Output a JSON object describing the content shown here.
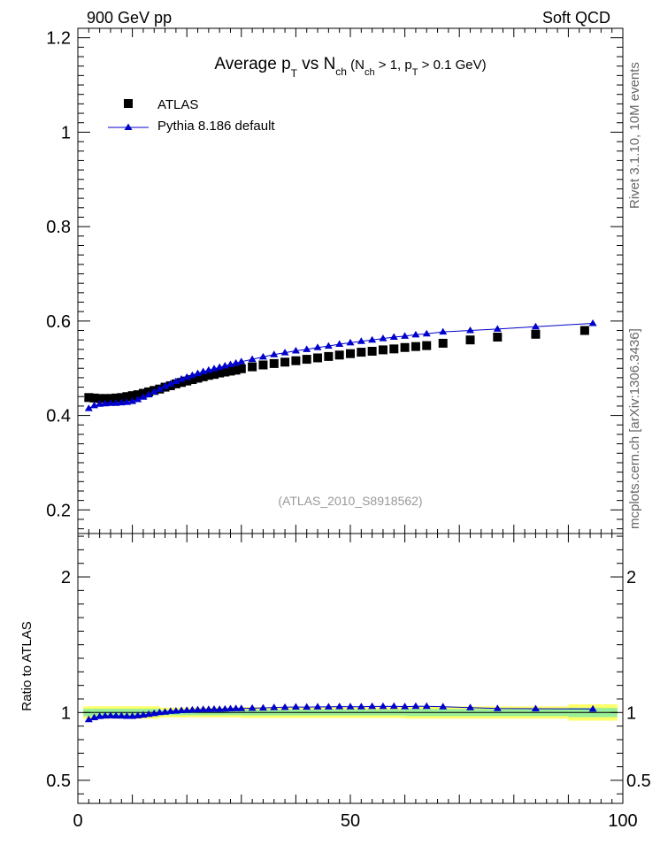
{
  "header": {
    "left": "900 GeV pp",
    "right": "Soft QCD"
  },
  "title": {
    "main": "Average p",
    "sub_T": "T",
    "vs": " vs N",
    "sub_ch": "ch",
    "cut_open": " (N",
    "cut_sub_ch": "ch",
    "cut_mid": " > 1, p",
    "cut_sub_T": "T",
    "cut_close": " > 0.1 GeV)"
  },
  "side_labels": {
    "rivet": "Rivet 3.1.10,  10M events",
    "mcplots": "mcplots.cern.ch [arXiv:1306.3436]"
  },
  "reference": "(ATLAS_2010_S8918562)",
  "colors": {
    "data": "#000000",
    "mc": "#0000cc",
    "band_outer": "#ffff66",
    "band_inner": "#99ee99",
    "mc_line": "#2e8b57"
  },
  "chart_data": [
    {
      "type": "scatter",
      "panel": "main",
      "xlim": [
        0,
        100
      ],
      "ylim": [
        0.15,
        1.22
      ],
      "yticks": [
        "0.2",
        "0.4",
        "0.6",
        "0.8",
        "1",
        "1.2"
      ],
      "legend": {
        "placement": "top-left"
      },
      "series": [
        {
          "name": "ATLAS",
          "marker": "square",
          "x": [
            2,
            3,
            4,
            5,
            6,
            7,
            8,
            9,
            10,
            11,
            12,
            13,
            14,
            15,
            16,
            17,
            18,
            19,
            20,
            21,
            22,
            23,
            24,
            25,
            26,
            27,
            28,
            29,
            30,
            32,
            34,
            36,
            38,
            40,
            42,
            44,
            46,
            48,
            50,
            52,
            54,
            56,
            58,
            60,
            62,
            64,
            67,
            72,
            77,
            84,
            93
          ],
          "y": [
            0.438,
            0.437,
            0.436,
            0.436,
            0.436,
            0.437,
            0.438,
            0.44,
            0.442,
            0.444,
            0.447,
            0.45,
            0.453,
            0.456,
            0.46,
            0.463,
            0.467,
            0.47,
            0.473,
            0.476,
            0.479,
            0.482,
            0.485,
            0.487,
            0.49,
            0.492,
            0.494,
            0.496,
            0.499,
            0.503,
            0.507,
            0.51,
            0.513,
            0.516,
            0.519,
            0.522,
            0.525,
            0.528,
            0.531,
            0.534,
            0.536,
            0.539,
            0.541,
            0.544,
            0.546,
            0.548,
            0.553,
            0.56,
            0.566,
            0.572,
            0.58
          ]
        },
        {
          "name": "Pythia 8.186 default",
          "marker": "triangle",
          "x": [
            2,
            3,
            4,
            5,
            6,
            7,
            8,
            9,
            10,
            11,
            12,
            13,
            14,
            15,
            16,
            17,
            18,
            19,
            20,
            21,
            22,
            23,
            24,
            25,
            26,
            27,
            28,
            29,
            30,
            32,
            34,
            36,
            38,
            40,
            42,
            44,
            46,
            48,
            50,
            52,
            54,
            56,
            58,
            60,
            62,
            64,
            67,
            72,
            77,
            84,
            94.5
          ],
          "y": [
            0.415,
            0.421,
            0.424,
            0.425,
            0.426,
            0.426,
            0.427,
            0.428,
            0.43,
            0.434,
            0.439,
            0.444,
            0.45,
            0.456,
            0.462,
            0.467,
            0.472,
            0.477,
            0.481,
            0.485,
            0.489,
            0.493,
            0.496,
            0.499,
            0.502,
            0.505,
            0.508,
            0.511,
            0.514,
            0.519,
            0.524,
            0.529,
            0.533,
            0.537,
            0.54,
            0.544,
            0.547,
            0.551,
            0.554,
            0.557,
            0.56,
            0.563,
            0.566,
            0.568,
            0.571,
            0.573,
            0.577,
            0.58,
            0.583,
            0.588,
            0.595
          ]
        }
      ]
    },
    {
      "type": "line",
      "panel": "ratio",
      "xlim": [
        0,
        100
      ],
      "ylim": [
        0.33,
        2.32
      ],
      "ylabel": "Ratio to ATLAS",
      "yticks": [
        "0.5",
        "1",
        "2"
      ],
      "xticks": [
        "0",
        "50",
        "100"
      ],
      "band": {
        "x_edges": [
          1,
          15,
          30,
          60,
          90,
          99
        ],
        "outer": [
          0.046,
          0.036,
          0.04,
          0.045,
          0.06
        ],
        "inner": [
          0.028,
          0.02,
          0.022,
          0.026,
          0.034
        ]
      },
      "series": [
        {
          "name": "Pythia 8.186 default",
          "x": [
            2,
            3,
            4,
            5,
            6,
            7,
            8,
            9,
            10,
            11,
            12,
            13,
            14,
            15,
            16,
            17,
            18,
            19,
            20,
            21,
            22,
            23,
            24,
            25,
            26,
            27,
            28,
            29,
            30,
            32,
            34,
            36,
            38,
            40,
            42,
            44,
            46,
            48,
            50,
            52,
            54,
            56,
            58,
            60,
            62,
            64,
            67,
            72,
            77,
            84,
            94.5
          ],
          "y": [
            0.948,
            0.963,
            0.972,
            0.975,
            0.977,
            0.975,
            0.975,
            0.973,
            0.973,
            0.977,
            0.982,
            0.987,
            0.993,
            1.0,
            1.004,
            1.009,
            1.011,
            1.015,
            1.017,
            1.019,
            1.021,
            1.023,
            1.023,
            1.025,
            1.024,
            1.026,
            1.028,
            1.03,
            1.03,
            1.032,
            1.034,
            1.037,
            1.039,
            1.041,
            1.04,
            1.042,
            1.042,
            1.044,
            1.043,
            1.043,
            1.045,
            1.045,
            1.046,
            1.044,
            1.046,
            1.046,
            1.043,
            1.036,
            1.03,
            1.028,
            1.026
          ]
        }
      ]
    }
  ]
}
